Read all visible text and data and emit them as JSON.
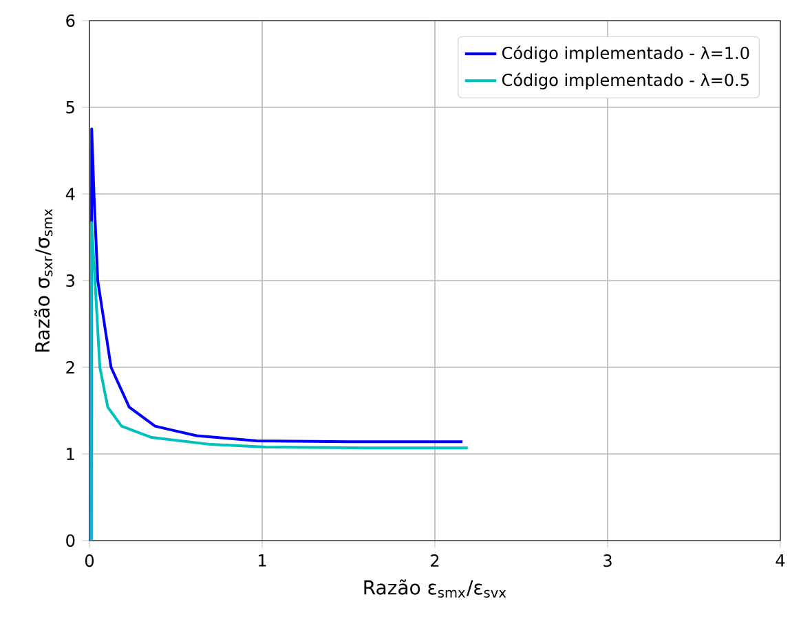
{
  "chart_data": {
    "type": "line",
    "xlabel": "Razão ε$_{smx}$/ε$_{svx}$",
    "ylabel": "Razão σ$_{sxr}$/σ$_{smx}$",
    "xlim": [
      0,
      4
    ],
    "ylim": [
      0,
      6
    ],
    "xticks": [
      0,
      1,
      2,
      3,
      4
    ],
    "yticks": [
      0,
      1,
      2,
      3,
      4,
      5,
      6
    ],
    "grid": true,
    "legend": "top right",
    "line_style": "solid",
    "marker": "none",
    "series": [
      {
        "name": "Código implementado - λ=1.0",
        "color": "#0000ff",
        "x": [
          0.01,
          0.013,
          0.026,
          0.048,
          0.125,
          0.23,
          0.38,
          0.62,
          0.97,
          1.5,
          2.16
        ],
        "values": [
          0,
          4.75,
          4.0,
          3.0,
          2.0,
          1.54,
          1.32,
          1.21,
          1.15,
          1.14,
          1.14
        ]
      },
      {
        "name": "Código implementado - λ=0.5",
        "color": "#00bfbf",
        "x": [
          0.01,
          0.012,
          0.032,
          0.06,
          0.106,
          0.186,
          0.36,
          0.7,
          1.02,
          1.6,
          2.19
        ],
        "values": [
          0,
          3.67,
          3.0,
          2.0,
          1.54,
          1.32,
          1.19,
          1.11,
          1.08,
          1.07,
          1.07
        ]
      }
    ]
  }
}
